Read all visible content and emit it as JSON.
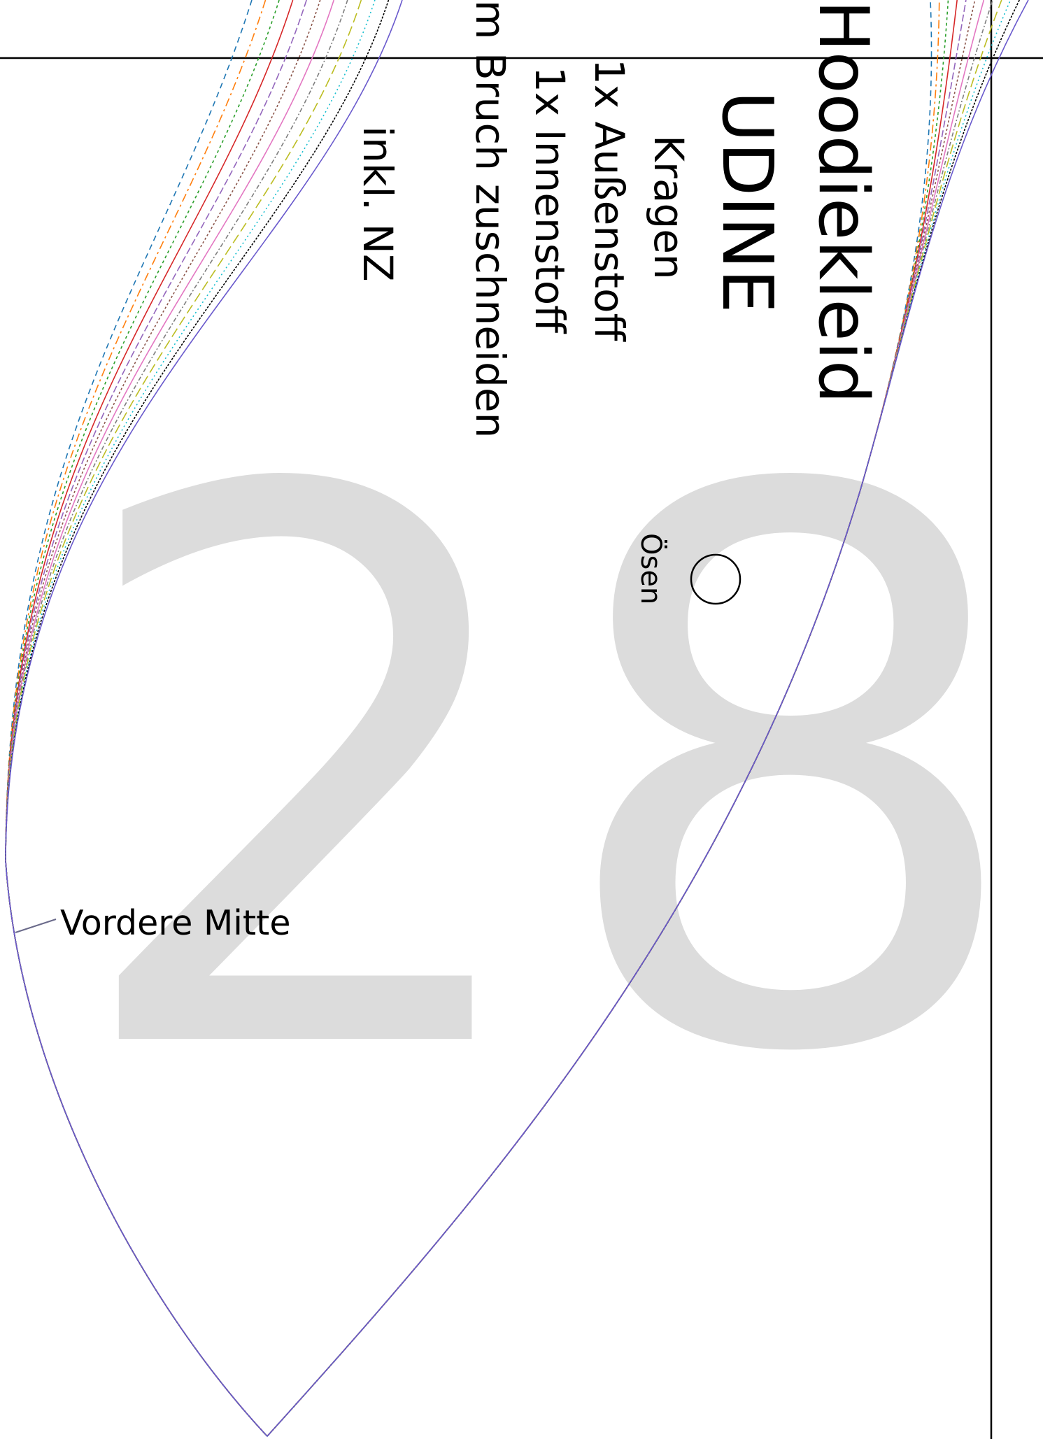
{
  "page_number": "28",
  "pattern_title": "Hoodiekleid",
  "pattern_name": "UDINE",
  "piece_name": "Kragen",
  "cut_outer": "1x Außenstoff",
  "cut_inner": "1x Innenstoff",
  "fold_note": "m Bruch zuschneiden",
  "seam_allowance": "inkl. NZ",
  "eyelet_label": "Ösen",
  "center_front_label": "Vordere Mitte",
  "size_line_colors": [
    "#1f77b4",
    "#ff7f0e",
    "#2ca02c",
    "#d62728",
    "#9467bd",
    "#8c564b",
    "#e377c2",
    "#7f7f7f",
    "#bcbd22",
    "#17becf",
    "#000000",
    "#6a5acd"
  ],
  "colors": {
    "page_number": "#dcdcdc",
    "outline": "#000000"
  }
}
